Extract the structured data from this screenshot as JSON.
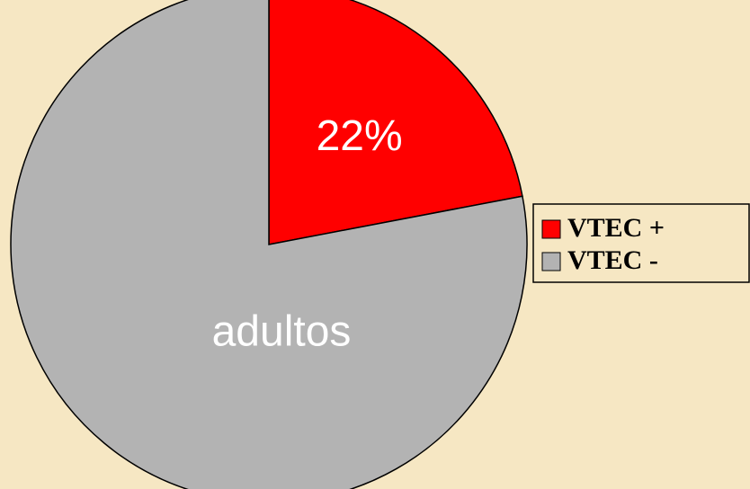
{
  "chart_data": {
    "type": "pie",
    "categories": [
      "VTEC +",
      "VTEC -"
    ],
    "values": [
      22,
      78
    ],
    "value_labels": [
      "22%",
      null
    ],
    "colors": [
      "#ff0000",
      "#b3b3b3"
    ],
    "annotation": "adultos",
    "legend": "right"
  }
}
